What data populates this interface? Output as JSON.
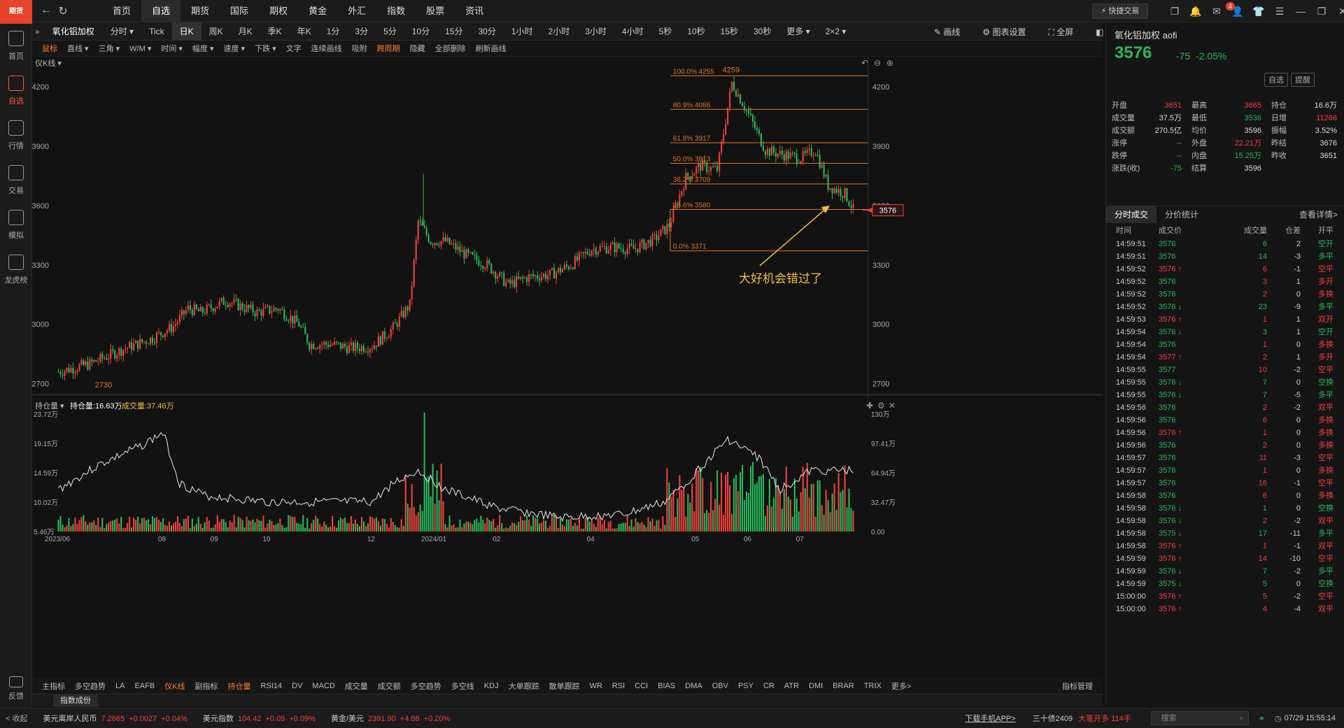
{
  "app": {
    "logo": "期货"
  },
  "leftbar": [
    {
      "id": "home",
      "label": "首页"
    },
    {
      "id": "watch",
      "label": "自选"
    },
    {
      "id": "market",
      "label": "行情"
    },
    {
      "id": "trade",
      "label": "交易"
    },
    {
      "id": "sim",
      "label": "模拟"
    },
    {
      "id": "rank",
      "label": "龙虎榜"
    }
  ],
  "feedback": "反馈",
  "nav": [
    "首页",
    "自选",
    "期货",
    "国际",
    "期权",
    "黄金",
    "外汇",
    "指数",
    "股票",
    "资讯"
  ],
  "nav_active": 1,
  "quick_trade": "快捷交易",
  "mail_badge": "4",
  "periods": {
    "symbol": "氧化铝加权",
    "items": [
      "分时",
      "分时 ▾",
      "Tick",
      "日K",
      "周K",
      "月K",
      "季K",
      "年K",
      "1分",
      "3分",
      "5分",
      "10分",
      "15分",
      "30分",
      "1小时",
      "2小时",
      "3小时",
      "4小时",
      "5秒",
      "10秒",
      "15秒",
      "30秒",
      "更多 ▾",
      "2×2 ▾"
    ],
    "active": 3
  },
  "periods_right": {
    "draw": "画线",
    "settings": "图表设置",
    "full": "全屏",
    "hide": "隐藏"
  },
  "drawtools": [
    "鼠标",
    "直线 ▾",
    "三角 ▾",
    "W/M ▾",
    "时间 ▾",
    "幅度 ▾",
    "速度 ▾",
    "下跌 ▾",
    "文字",
    "连续画线",
    "吸附",
    "跨周期",
    "隐藏",
    "全部删除",
    "刷新画线"
  ],
  "main_chart": {
    "label": "仪K线 ▾",
    "yticks": [
      "4200",
      "3900",
      "3600",
      "3300",
      "3000",
      "2700"
    ],
    "fib": [
      {
        "label": "100.0% 4255"
      },
      {
        "label": "80.9% 4086"
      },
      {
        "label": "61.8% 3917"
      },
      {
        "label": "50.0% 3813"
      },
      {
        "label": "38.2% 3709"
      },
      {
        "label": "23.6% 3580"
      },
      {
        "label": "0.0% 3371"
      }
    ],
    "high_label": "4259",
    "low_label": "2730",
    "price_tag": "3576",
    "annotation": "大好机会错过了"
  },
  "sub_chart": {
    "label": "持仓量 ▾",
    "oi": "持仓量:16.63万",
    "vol": "成交量:37.46万",
    "left_ticks": [
      "23.72万",
      "19.15万",
      "14.59万",
      "10.02万",
      "5.46万"
    ],
    "right_ticks": [
      "130万",
      "97.41万",
      "64.94万",
      "32.47万",
      "0.00"
    ],
    "xticks": [
      "2023/06",
      "08",
      "09",
      "10",
      "12",
      "2024/01",
      "02",
      "04",
      "05",
      "06",
      "07"
    ]
  },
  "indicators": [
    "主指标",
    "多空趋势",
    "LA",
    "EAFB",
    "仪K线",
    "副指标",
    "持仓量",
    "RSI14",
    "DV",
    "MACD",
    "成交量",
    "成交额",
    "多空趋势",
    "多空线",
    "KDJ",
    "大单跟踪",
    "散单跟踪",
    "WR",
    "RSI",
    "CCI",
    "BIAS",
    "DMA",
    "OBV",
    "PSY",
    "CR",
    "ATR",
    "DMI",
    "BRAR",
    "TRIX",
    "更多>",
    "指标管理"
  ],
  "subtab": "指数成份",
  "right": {
    "name": "氧化铝加权  aofi",
    "price": "3576",
    "change": "-75",
    "pct": "-2.05%",
    "btns": [
      "自选",
      "提醒"
    ],
    "stats": [
      [
        "开盘",
        "3651",
        "最高",
        "3665",
        "持仓",
        "16.6万"
      ],
      [
        "成交量",
        "37.5万",
        "最低",
        "3536",
        "日增",
        "11266"
      ],
      [
        "成交额",
        "270.5亿",
        "均价",
        "3596",
        "振幅",
        "3.52%"
      ],
      [
        "涨停",
        "--",
        "外盘",
        "22.21万",
        "昨结",
        "3676"
      ],
      [
        "跌停",
        "--",
        "内盘",
        "15.25万",
        "昨收",
        "3651"
      ],
      [
        "涨跌(收)",
        "-75",
        "结算",
        "3596",
        "",
        ""
      ]
    ],
    "tabs": [
      "分时成交",
      "分价统计",
      "查看详情>"
    ],
    "tick_head": [
      "时间",
      "成交价",
      "成交量",
      "仓差",
      "开平"
    ],
    "ticks": [
      [
        "14:59:51",
        "3576",
        "",
        "6",
        "2",
        "空开"
      ],
      [
        "14:59:51",
        "3576",
        "",
        "14",
        "-3",
        "多平"
      ],
      [
        "14:59:52",
        "3576",
        "↑",
        "6",
        "-1",
        "空平"
      ],
      [
        "14:59:52",
        "3576",
        "",
        "3",
        "1",
        "多开"
      ],
      [
        "14:59:52",
        "3576",
        "",
        "2",
        "0",
        "多换"
      ],
      [
        "14:59:52",
        "3576",
        "↓",
        "23",
        "-9",
        "多平"
      ],
      [
        "14:59:53",
        "3576",
        "↑",
        "1",
        "1",
        "双开"
      ],
      [
        "14:59:54",
        "3576",
        "↓",
        "3",
        "1",
        "空开"
      ],
      [
        "14:59:54",
        "3576",
        "",
        "1",
        "0",
        "多换"
      ],
      [
        "14:59:54",
        "3577",
        "↑",
        "2",
        "1",
        "多开"
      ],
      [
        "14:59:55",
        "3577",
        "",
        "10",
        "-2",
        "空平"
      ],
      [
        "14:59:55",
        "3576",
        "↓",
        "7",
        "0",
        "空换"
      ],
      [
        "14:59:55",
        "3576",
        "↓",
        "7",
        "-5",
        "多平"
      ],
      [
        "14:59:56",
        "3576",
        "",
        "2",
        "-2",
        "双平"
      ],
      [
        "14:59:56",
        "3576",
        "",
        "6",
        "0",
        "多换"
      ],
      [
        "14:59:56",
        "3576",
        "↑",
        "1",
        "0",
        "多换"
      ],
      [
        "14:59:56",
        "3576",
        "",
        "2",
        "0",
        "多换"
      ],
      [
        "14:59:57",
        "3576",
        "",
        "11",
        "-3",
        "空平"
      ],
      [
        "14:59:57",
        "3576",
        "",
        "1",
        "0",
        "多换"
      ],
      [
        "14:59:57",
        "3576",
        "",
        "16",
        "-1",
        "空平"
      ],
      [
        "14:59:58",
        "3576",
        "",
        "6",
        "0",
        "多换"
      ],
      [
        "14:59:58",
        "3576",
        "↓",
        "1",
        "0",
        "空换"
      ],
      [
        "14:59:58",
        "3576",
        "↓",
        "2",
        "-2",
        "双平"
      ],
      [
        "14:59:58",
        "3575",
        "↓",
        "17",
        "-11",
        "多平"
      ],
      [
        "14:59:58",
        "3576",
        "↑",
        "1",
        "-1",
        "双平"
      ],
      [
        "14:59:59",
        "3576",
        "↑",
        "14",
        "-10",
        "空平"
      ],
      [
        "14:59:59",
        "3576",
        "↓",
        "7",
        "-2",
        "多平"
      ],
      [
        "14:59:59",
        "3575",
        "↓",
        "5",
        "0",
        "空换"
      ],
      [
        "15:00:00",
        "3576",
        "↑",
        "5",
        "-2",
        "空平"
      ],
      [
        "15:00:00",
        "3576",
        "↑",
        "4",
        "-4",
        "双平"
      ]
    ]
  },
  "status": {
    "collapse": "< 收起",
    "items": [
      [
        "美元离岸人民币",
        "7.2665",
        "+0.0027",
        "+0.04%"
      ],
      [
        "美元指数",
        "104.42",
        "+0.09",
        "+0.09%"
      ],
      [
        "黄金/美元",
        "2391.90",
        "+4.86",
        "+0.20%"
      ]
    ],
    "download": "下载手机APP>",
    "bond": "三十债2409",
    "bigorder": "大笔开多 114手",
    "search": "搜索",
    "time": "07/29 15:55:14"
  },
  "colors": {
    "up": "#f2403e",
    "down": "#27b85b",
    "fib": "#e0761f",
    "accent": "#ff5a3c"
  }
}
